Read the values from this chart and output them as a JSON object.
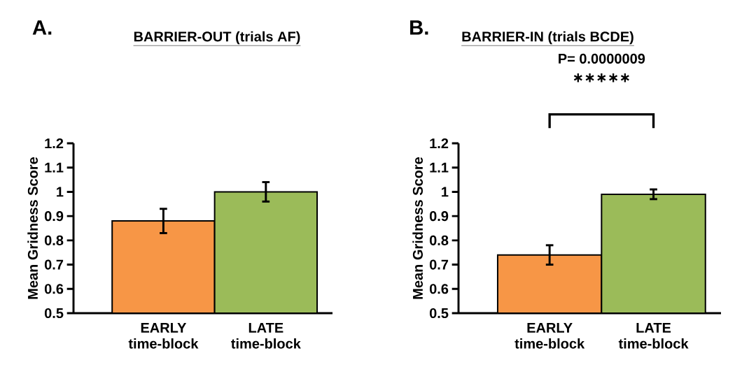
{
  "chart_data": [
    {
      "type": "bar",
      "title": "BARRIER-OUT (trials AF)",
      "annotations": [
        "A."
      ],
      "ylabel": "Mean Gridness Score",
      "categories": [
        "EARLY time-block",
        "LATE time-block"
      ],
      "values": [
        0.88,
        1.0
      ],
      "colors": [
        "#f79646",
        "#9bbb59"
      ],
      "errors": [
        0.05,
        0.04
      ],
      "ylim": [
        0.5,
        1.2
      ],
      "yticks": [
        0.5,
        0.6,
        0.7,
        0.8,
        0.9,
        1,
        1.1,
        1.2
      ],
      "grid": false
    },
    {
      "type": "bar",
      "title": "BARRIER-IN (trials BCDE)",
      "annotations": [
        "B.",
        "P= 0.0000009",
        "∗∗∗∗∗"
      ],
      "ylabel": "Mean Gridness Score",
      "categories": [
        "EARLY time-block",
        "LATE time-block"
      ],
      "values": [
        0.74,
        0.99
      ],
      "colors": [
        "#f79646",
        "#9bbb59"
      ],
      "errors": [
        0.04,
        0.02
      ],
      "ylim": [
        0.5,
        1.2
      ],
      "yticks": [
        0.5,
        0.6,
        0.7,
        0.8,
        0.9,
        1,
        1.1,
        1.2
      ],
      "grid": false
    }
  ]
}
